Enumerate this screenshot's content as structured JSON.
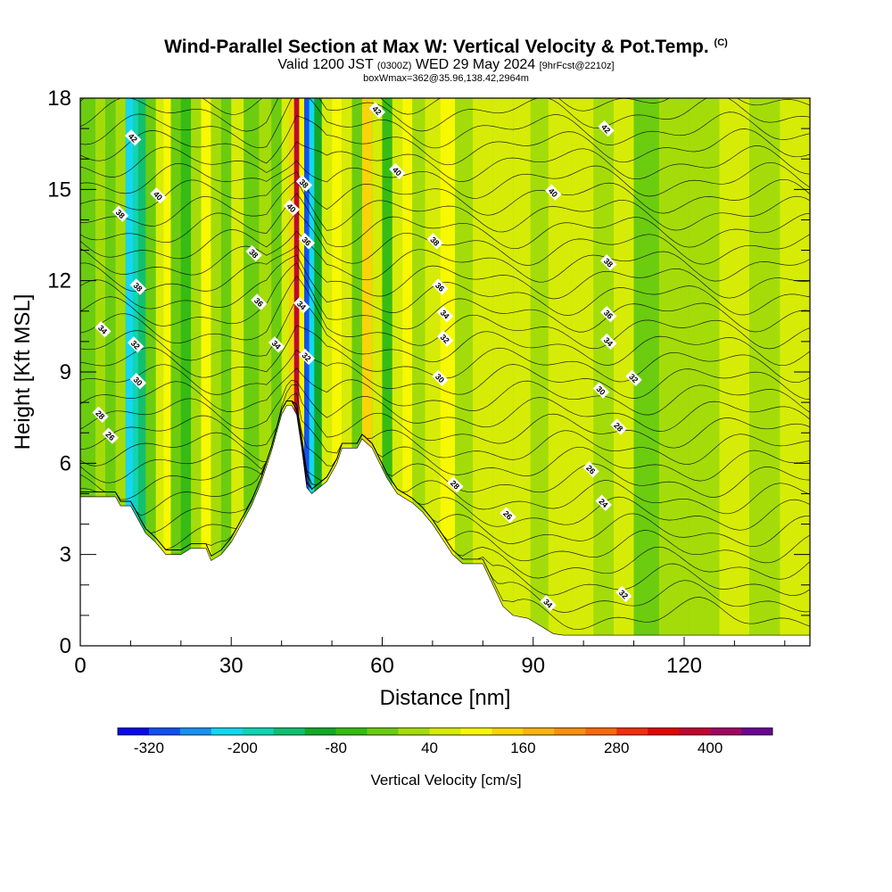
{
  "title": {
    "main": "Wind-Parallel Section at Max W: Vertical Velocity & Pot.Temp.",
    "copyright_mark": "(C)",
    "valid_prefix": "Valid 1200 JST",
    "valid_utc": "(0300Z)",
    "valid_date": "WED 29 May 2024",
    "forecast_note": "[9hrFcst@2210z]",
    "box_info": "boxWmax=362@35.96,138.42,2964m"
  },
  "chart_data": {
    "type": "heatmap",
    "title": "Wind-Parallel Section at Max W: Vertical Velocity & Pot.Temp.",
    "xlabel": "Distance [nm]",
    "ylabel": "Height [Kft MSL]",
    "xlim": [
      0,
      145
    ],
    "ylim": [
      0,
      18
    ],
    "x_ticks": [
      0,
      30,
      60,
      90,
      120
    ],
    "y_ticks": [
      0,
      3,
      6,
      9,
      12,
      15,
      18
    ],
    "colorbar": {
      "label": "Vertical Velocity [cm/s]",
      "tick_labels": [
        -320,
        -200,
        -80,
        40,
        160,
        280,
        400
      ],
      "bins": [
        -360,
        -320,
        -280,
        -240,
        -200,
        -160,
        -120,
        -80,
        -40,
        0,
        40,
        80,
        120,
        160,
        200,
        240,
        280,
        320,
        360,
        400,
        440,
        480
      ],
      "colors": [
        "#0a0ae8",
        "#1450f0",
        "#1a90f0",
        "#12d8f0",
        "#10d4b4",
        "#10c070",
        "#14a828",
        "#36bc14",
        "#6ccc10",
        "#a4dc0a",
        "#d6ec06",
        "#f8f800",
        "#f8d408",
        "#f8b410",
        "#f89010",
        "#f86810",
        "#f03010",
        "#e00808",
        "#c00830",
        "#a00860",
        "#6a0890"
      ]
    },
    "terrain": [
      [
        0,
        4.9
      ],
      [
        7,
        4.9
      ],
      [
        8,
        4.6
      ],
      [
        10,
        4.6
      ],
      [
        11,
        4.3
      ],
      [
        12,
        4.0
      ],
      [
        13,
        3.7
      ],
      [
        15,
        3.4
      ],
      [
        16,
        3.2
      ],
      [
        17,
        3.0
      ],
      [
        20,
        3.0
      ],
      [
        22,
        3.2
      ],
      [
        25,
        3.2
      ],
      [
        26,
        2.8
      ],
      [
        28,
        3.0
      ],
      [
        30,
        3.4
      ],
      [
        32,
        4.0
      ],
      [
        34,
        4.6
      ],
      [
        36,
        5.4
      ],
      [
        38,
        6.4
      ],
      [
        40,
        7.6
      ],
      [
        41,
        7.9
      ],
      [
        42,
        7.9
      ],
      [
        43,
        7.6
      ],
      [
        44,
        6.5
      ],
      [
        45,
        5.2
      ],
      [
        46,
        5.0
      ],
      [
        49,
        5.4
      ],
      [
        51,
        6.0
      ],
      [
        52,
        6.5
      ],
      [
        55,
        6.5
      ],
      [
        56,
        6.8
      ],
      [
        58,
        6.5
      ],
      [
        61,
        5.5
      ],
      [
        63,
        5.0
      ],
      [
        66,
        4.7
      ],
      [
        68,
        4.4
      ],
      [
        70,
        4.0
      ],
      [
        72,
        3.5
      ],
      [
        74,
        3.0
      ],
      [
        76,
        2.7
      ],
      [
        80,
        2.7
      ],
      [
        82,
        2.0
      ],
      [
        84,
        1.3
      ],
      [
        86,
        1.0
      ],
      [
        89,
        0.9
      ],
      [
        92,
        0.6
      ],
      [
        94,
        0.4
      ],
      [
        96,
        0.35
      ],
      [
        145,
        0.35
      ]
    ],
    "vertical_velocity_columns": [
      {
        "x": 2,
        "w": -40
      },
      {
        "x": 4,
        "w": 20
      },
      {
        "x": 6,
        "w": -40
      },
      {
        "x": 8,
        "w": 10
      },
      {
        "x": 10,
        "w": -240
      },
      {
        "x": 11,
        "w": -200
      },
      {
        "x": 12,
        "w": -160
      },
      {
        "x": 14,
        "w": -40
      },
      {
        "x": 16,
        "w": 60
      },
      {
        "x": 17,
        "w": 100
      },
      {
        "x": 19,
        "w": -40
      },
      {
        "x": 21,
        "w": -80
      },
      {
        "x": 23,
        "w": 20
      },
      {
        "x": 25,
        "w": 100
      },
      {
        "x": 27,
        "w": 20
      },
      {
        "x": 29,
        "w": -40
      },
      {
        "x": 31,
        "w": 40
      },
      {
        "x": 34,
        "w": -20
      },
      {
        "x": 37,
        "w": 20
      },
      {
        "x": 39,
        "w": -40
      },
      {
        "x": 41,
        "w": 40
      },
      {
        "x": 42,
        "w": 120
      },
      {
        "x": 43,
        "w": 362
      },
      {
        "x": 44,
        "w": 80
      },
      {
        "x": 45,
        "w": -320
      },
      {
        "x": 46,
        "w": -240
      },
      {
        "x": 47,
        "w": -120
      },
      {
        "x": 49,
        "w": 40
      },
      {
        "x": 51,
        "w": 100
      },
      {
        "x": 53,
        "w": 40
      },
      {
        "x": 55,
        "w": -40
      },
      {
        "x": 57,
        "w": 120
      },
      {
        "x": 59,
        "w": 60
      },
      {
        "x": 61,
        "w": -80
      },
      {
        "x": 63,
        "w": 40
      },
      {
        "x": 65,
        "w": 100
      },
      {
        "x": 67,
        "w": 0
      },
      {
        "x": 70,
        "w": 40
      },
      {
        "x": 73,
        "w": 80
      },
      {
        "x": 76,
        "w": 20
      },
      {
        "x": 80,
        "w": 60
      },
      {
        "x": 84,
        "w": 40
      },
      {
        "x": 88,
        "w": 40
      },
      {
        "x": 91,
        "w": 20
      },
      {
        "x": 95,
        "w": 40
      },
      {
        "x": 100,
        "w": 60
      },
      {
        "x": 104,
        "w": 0
      },
      {
        "x": 108,
        "w": 40
      },
      {
        "x": 112,
        "w": -20
      },
      {
        "x": 118,
        "w": 30
      },
      {
        "x": 124,
        "w": 10
      },
      {
        "x": 130,
        "w": 40
      },
      {
        "x": 136,
        "w": 20
      },
      {
        "x": 142,
        "w": 40
      }
    ],
    "potential_temperature_labels": [
      {
        "x": 10.5,
        "y": 16.7,
        "text": "42"
      },
      {
        "x": 15.5,
        "y": 14.8,
        "text": "40"
      },
      {
        "x": 8,
        "y": 14.2,
        "text": "38"
      },
      {
        "x": 11.5,
        "y": 11.8,
        "text": "38"
      },
      {
        "x": 4.5,
        "y": 10.4,
        "text": "34"
      },
      {
        "x": 11,
        "y": 9.9,
        "text": "32"
      },
      {
        "x": 11.5,
        "y": 8.7,
        "text": "30"
      },
      {
        "x": 4,
        "y": 7.6,
        "text": "28"
      },
      {
        "x": 6,
        "y": 6.9,
        "text": "26"
      },
      {
        "x": 34.5,
        "y": 12.9,
        "text": "38"
      },
      {
        "x": 35.5,
        "y": 11.3,
        "text": "36"
      },
      {
        "x": 39,
        "y": 9.9,
        "text": "34"
      },
      {
        "x": 42,
        "y": 14.4,
        "text": "40"
      },
      {
        "x": 44.5,
        "y": 15.2,
        "text": "38"
      },
      {
        "x": 45,
        "y": 13.3,
        "text": "36"
      },
      {
        "x": 44,
        "y": 11.2,
        "text": "34"
      },
      {
        "x": 45,
        "y": 9.5,
        "text": "32"
      },
      {
        "x": 59,
        "y": 17.6,
        "text": "42"
      },
      {
        "x": 63,
        "y": 15.6,
        "text": "40"
      },
      {
        "x": 70.5,
        "y": 13.3,
        "text": "38"
      },
      {
        "x": 71.5,
        "y": 11.8,
        "text": "36"
      },
      {
        "x": 72.5,
        "y": 10.9,
        "text": "34"
      },
      {
        "x": 72.5,
        "y": 10.1,
        "text": "32"
      },
      {
        "x": 71.5,
        "y": 8.8,
        "text": "30"
      },
      {
        "x": 74.5,
        "y": 5.3,
        "text": "28"
      },
      {
        "x": 85,
        "y": 4.3,
        "text": "26"
      },
      {
        "x": 94,
        "y": 14.9,
        "text": "40"
      },
      {
        "x": 104.5,
        "y": 17.0,
        "text": "42"
      },
      {
        "x": 105,
        "y": 12.6,
        "text": "38"
      },
      {
        "x": 105,
        "y": 10.9,
        "text": "36"
      },
      {
        "x": 105,
        "y": 10.0,
        "text": "34"
      },
      {
        "x": 110,
        "y": 8.8,
        "text": "32"
      },
      {
        "x": 103.5,
        "y": 8.4,
        "text": "30"
      },
      {
        "x": 107,
        "y": 7.2,
        "text": "28"
      },
      {
        "x": 101.5,
        "y": 5.8,
        "text": "26"
      },
      {
        "x": 104,
        "y": 4.7,
        "text": "24"
      },
      {
        "x": 93,
        "y": 1.4,
        "text": "34"
      },
      {
        "x": 108,
        "y": 1.7,
        "text": "32"
      }
    ]
  }
}
